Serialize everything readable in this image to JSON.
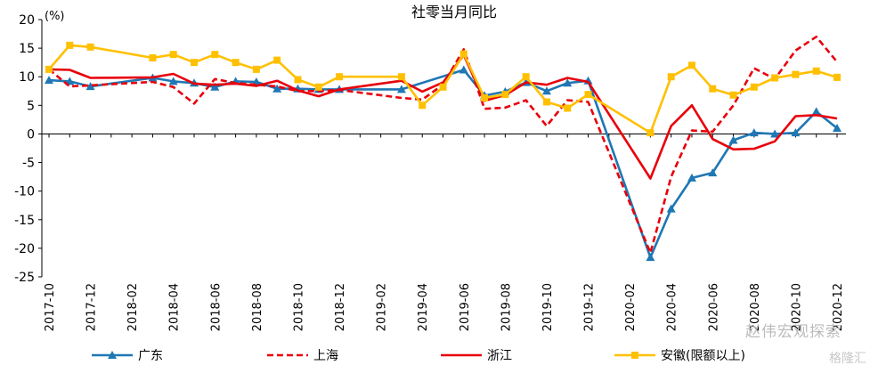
{
  "chart_data": {
    "type": "line",
    "title": "社零当月同比",
    "ylabel": "(%)",
    "xlabel": "",
    "ylim": [
      -25,
      20
    ],
    "yticks": [
      20,
      15,
      10,
      5,
      0,
      -5,
      -10,
      -15,
      -20,
      -25
    ],
    "grid": false,
    "legend_position": "bottom",
    "x": [
      "2017-10",
      "2017-11",
      "2017-12",
      "2018-01",
      "2018-02",
      "2018-03",
      "2018-04",
      "2018-05",
      "2018-06",
      "2018-07",
      "2018-08",
      "2018-09",
      "2018-10",
      "2018-11",
      "2018-12",
      "2019-01",
      "2019-02",
      "2019-03",
      "2019-04",
      "2019-05",
      "2019-06",
      "2019-07",
      "2019-08",
      "2019-09",
      "2019-10",
      "2019-11",
      "2019-12",
      "2020-01",
      "2020-02",
      "2020-03",
      "2020-04",
      "2020-05",
      "2020-06",
      "2020-07",
      "2020-08",
      "2020-09",
      "2020-10",
      "2020-11",
      "2020-12"
    ],
    "xtick_labels": [
      "2017-10",
      "2017-12",
      "2018-02",
      "2018-04",
      "2018-06",
      "2018-08",
      "2018-10",
      "2018-12",
      "2019-02",
      "2019-04",
      "2019-06",
      "2019-08",
      "2019-10",
      "2019-12",
      "2020-02",
      "2020-04",
      "2020-06",
      "2020-08",
      "2020-10",
      "2020-12"
    ],
    "series": [
      {
        "name": "广东",
        "color": "#1f77b4",
        "style": "solid",
        "marker": "triangle",
        "values": [
          9.4,
          9.2,
          8.3,
          null,
          null,
          9.8,
          9.2,
          8.9,
          8.2,
          9.2,
          9.1,
          7.9,
          7.9,
          7.8,
          7.8,
          null,
          null,
          7.8,
          null,
          null,
          11.2,
          6.7,
          7.4,
          9.0,
          7.5,
          8.9,
          9.3,
          null,
          null,
          -21.6,
          -13.1,
          -7.7,
          -6.8,
          -1.1,
          0.2,
          0.0,
          0.2,
          3.9,
          1.0
        ]
      },
      {
        "name": "上海",
        "color": "#e8000b",
        "style": "dashed",
        "marker": "none",
        "values": [
          11.3,
          8.3,
          8.5,
          null,
          null,
          9.1,
          8.2,
          5.3,
          9.6,
          8.9,
          8.6,
          8.3,
          7.5,
          7.5,
          7.7,
          null,
          null,
          6.3,
          6.0,
          8.6,
          14.8,
          4.4,
          4.6,
          5.9,
          1.4,
          5.9,
          5.6,
          null,
          null,
          -20.8,
          -7.5,
          0.6,
          0.4,
          5.0,
          11.5,
          9.6,
          14.6,
          17.0,
          12.6
        ]
      },
      {
        "name": "浙江",
        "color": "#e8000b",
        "style": "solid",
        "marker": "none",
        "values": [
          11.3,
          11.2,
          9.8,
          null,
          null,
          9.9,
          10.5,
          8.8,
          8.6,
          8.8,
          8.4,
          9.3,
          7.6,
          6.6,
          7.8,
          null,
          null,
          9.3,
          7.4,
          9.0,
          13.8,
          5.8,
          6.8,
          9.0,
          8.6,
          9.8,
          9.1,
          null,
          null,
          -7.8,
          1.4,
          5.0,
          -0.9,
          -2.7,
          -2.6,
          -1.3,
          3.1,
          3.3,
          2.7
        ]
      },
      {
        "name": "安徽(限额以上)",
        "color": "#ffc000",
        "style": "solid",
        "marker": "square",
        "values": [
          11.3,
          15.5,
          15.2,
          null,
          null,
          13.3,
          13.9,
          12.5,
          13.9,
          12.5,
          11.3,
          12.9,
          9.5,
          8.2,
          10.0,
          null,
          null,
          10.0,
          5.0,
          8.2,
          14.0,
          6.3,
          6.9,
          10.0,
          5.6,
          4.5,
          6.9,
          null,
          null,
          0.2,
          10.0,
          12.0,
          7.9,
          6.8,
          8.2,
          9.8,
          10.4,
          11.0,
          9.9
        ]
      }
    ]
  },
  "watermark": {
    "text": "赵伟宏观探索",
    "sub": "格隆汇"
  }
}
